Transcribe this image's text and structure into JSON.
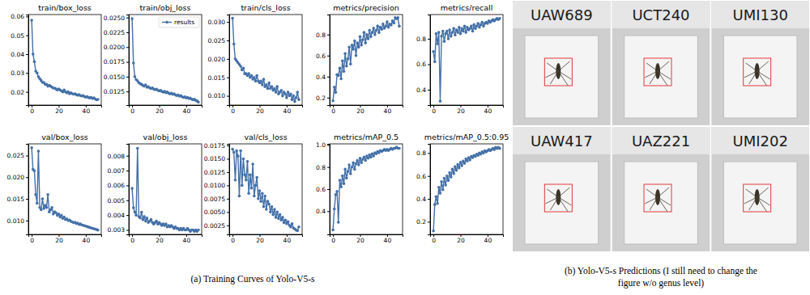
{
  "chart_data": [
    {
      "type": "line",
      "title": "train/box_loss",
      "color": "#4470a8",
      "marker": "o",
      "line_style": "solid",
      "grid": false,
      "x": [
        0,
        1,
        2,
        3,
        4,
        5,
        6,
        7,
        8,
        9,
        10,
        11,
        12,
        13,
        14,
        15,
        16,
        17,
        18,
        19,
        20,
        21,
        22,
        23,
        24,
        25,
        26,
        27,
        28,
        29,
        30,
        31,
        32,
        33,
        34,
        35,
        36,
        37,
        38,
        39,
        40,
        41,
        42,
        43,
        44,
        45,
        46,
        47,
        48,
        49
      ],
      "values": [
        0.058,
        0.04,
        0.036,
        0.031,
        0.03,
        0.028,
        0.027,
        0.026,
        0.025,
        0.025,
        0.024,
        0.024,
        0.023,
        0.0235,
        0.023,
        0.0225,
        0.022,
        0.022,
        0.0215,
        0.021,
        0.0215,
        0.021,
        0.0205,
        0.02,
        0.021,
        0.02,
        0.0195,
        0.02,
        0.019,
        0.0195,
        0.019,
        0.0188,
        0.019,
        0.0185,
        0.0182,
        0.0185,
        0.018,
        0.0178,
        0.018,
        0.0175,
        0.0172,
        0.0175,
        0.017,
        0.0168,
        0.017,
        0.0165,
        0.0168,
        0.0162,
        0.0158,
        0.016
      ],
      "xlim": [
        -2.45,
        51.45
      ],
      "xticks": [
        0,
        20,
        40
      ],
      "ylim": [
        0.013,
        0.061
      ],
      "yticks": [
        0.02,
        0.03,
        0.04,
        0.05,
        0.06
      ]
    },
    {
      "type": "line",
      "title": "train/obj_loss",
      "marker": "o",
      "line_style": "solid",
      "grid": false,
      "legend": "upper right",
      "x": [
        0,
        1,
        2,
        3,
        4,
        5,
        6,
        7,
        8,
        9,
        10,
        11,
        12,
        13,
        14,
        15,
        16,
        17,
        18,
        19,
        20,
        21,
        22,
        23,
        24,
        25,
        26,
        27,
        28,
        29,
        30,
        31,
        32,
        33,
        34,
        35,
        36,
        37,
        38,
        39,
        40,
        41,
        42,
        43,
        44,
        45,
        46,
        47,
        48,
        49
      ],
      "series": [
        {
          "name": "results",
          "color": "#4470a8",
          "values": [
            0.0248,
            0.0173,
            0.015,
            0.0145,
            0.0143,
            0.014,
            0.0138,
            0.0137,
            0.0135,
            0.0134,
            0.0136,
            0.0132,
            0.0133,
            0.0131,
            0.013,
            0.0131,
            0.0129,
            0.0128,
            0.0129,
            0.0127,
            0.0126,
            0.0127,
            0.0125,
            0.0124,
            0.0125,
            0.0123,
            0.0124,
            0.0122,
            0.0121,
            0.0122,
            0.012,
            0.0121,
            0.0119,
            0.0118,
            0.0119,
            0.0117,
            0.0118,
            0.0116,
            0.0115,
            0.0116,
            0.0114,
            0.0115,
            0.0113,
            0.0114,
            0.0112,
            0.0111,
            0.0112,
            0.011,
            0.0109,
            0.0107
          ]
        }
      ],
      "xlim": [
        -2.45,
        51.45
      ],
      "xticks": [
        0,
        20,
        40
      ],
      "ylim": [
        0.0102,
        0.0255
      ],
      "yticks": [
        0.0125,
        {
          "value": 0.015,
          "label": "0.0150"
        },
        0.0175,
        {
          "value": 0.02,
          "label": "0.0200"
        },
        0.0225,
        {
          "value": 0.025,
          "label": "0.0250"
        }
      ]
    },
    {
      "type": "line",
      "title": "train/cls_loss",
      "color": "#4470a8",
      "marker": "o",
      "line_style": "solid",
      "grid": false,
      "x": [
        0,
        1,
        2,
        3,
        4,
        5,
        6,
        7,
        8,
        9,
        10,
        11,
        12,
        13,
        14,
        15,
        16,
        17,
        18,
        19,
        20,
        21,
        22,
        23,
        24,
        25,
        26,
        27,
        28,
        29,
        30,
        31,
        32,
        33,
        34,
        35,
        36,
        37,
        38,
        39,
        40,
        41,
        42,
        43,
        44,
        45,
        46,
        47,
        48,
        49
      ],
      "values": [
        0.031,
        0.024,
        0.02,
        0.0195,
        0.019,
        0.0185,
        0.018,
        0.017,
        0.0175,
        0.016,
        0.016,
        0.0155,
        0.016,
        0.015,
        0.0155,
        0.0145,
        0.015,
        0.014,
        0.0155,
        0.014,
        0.0135,
        0.014,
        0.013,
        0.0145,
        0.0125,
        0.013,
        0.012,
        0.0135,
        0.012,
        0.0125,
        0.0115,
        0.012,
        0.011,
        0.0125,
        0.0105,
        0.011,
        0.0115,
        0.01,
        0.011,
        0.0105,
        0.0095,
        0.011,
        0.01,
        0.0105,
        0.009,
        0.01,
        0.0085,
        0.0095,
        0.011,
        0.009
      ],
      "xlim": [
        -2.45,
        51.45
      ],
      "xticks": [
        0,
        20,
        40
      ],
      "ylim": [
        0.0075,
        0.032
      ],
      "yticks": [
        {
          "value": 0.01,
          "label": "0.010"
        },
        0.015,
        {
          "value": 0.02,
          "label": "0.020"
        },
        0.025,
        {
          "value": 0.03,
          "label": "0.030"
        }
      ]
    },
    {
      "type": "line",
      "title": "metrics/precision",
      "color": "#4470a8",
      "marker": "o",
      "line_style": "solid",
      "grid": false,
      "x": [
        0,
        1,
        2,
        3,
        4,
        5,
        6,
        7,
        8,
        9,
        10,
        11,
        12,
        13,
        14,
        15,
        16,
        17,
        18,
        19,
        20,
        21,
        22,
        23,
        24,
        25,
        26,
        27,
        28,
        29,
        30,
        31,
        32,
        33,
        34,
        35,
        36,
        37,
        38,
        39,
        40,
        41,
        42,
        43,
        44,
        45,
        46,
        47,
        48,
        49
      ],
      "values": [
        0.17,
        0.3,
        0.25,
        0.42,
        0.41,
        0.48,
        0.38,
        0.55,
        0.45,
        0.62,
        0.5,
        0.57,
        0.68,
        0.52,
        0.7,
        0.66,
        0.74,
        0.6,
        0.72,
        0.68,
        0.78,
        0.7,
        0.75,
        0.82,
        0.72,
        0.8,
        0.76,
        0.84,
        0.78,
        0.82,
        0.86,
        0.8,
        0.84,
        0.88,
        0.82,
        0.87,
        0.85,
        0.9,
        0.86,
        0.88,
        0.92,
        0.87,
        0.9,
        0.89,
        0.93,
        0.91,
        0.96,
        0.95,
        0.96,
        0.88
      ],
      "xlim": [
        -2.45,
        51.45
      ],
      "xticks": [
        0,
        20,
        40
      ],
      "ylim": [
        0.13,
        0.99
      ],
      "yticks": [
        0.2,
        0.4,
        0.6,
        0.8
      ]
    },
    {
      "type": "line",
      "title": "metrics/recall",
      "color": "#4470a8",
      "marker": "o",
      "line_style": "solid",
      "grid": false,
      "x": [
        0,
        1,
        2,
        3,
        4,
        5,
        6,
        7,
        8,
        9,
        10,
        11,
        12,
        13,
        14,
        15,
        16,
        17,
        18,
        19,
        20,
        21,
        22,
        23,
        24,
        25,
        26,
        27,
        28,
        29,
        30,
        31,
        32,
        33,
        34,
        35,
        36,
        37,
        38,
        39,
        40,
        41,
        42,
        43,
        44,
        45,
        46,
        47,
        48,
        49
      ],
      "values": [
        0.7,
        0.62,
        0.84,
        0.76,
        0.85,
        0.31,
        0.82,
        0.86,
        0.78,
        0.84,
        0.86,
        0.8,
        0.87,
        0.82,
        0.85,
        0.88,
        0.83,
        0.87,
        0.85,
        0.89,
        0.84,
        0.88,
        0.86,
        0.9,
        0.85,
        0.89,
        0.87,
        0.88,
        0.9,
        0.86,
        0.91,
        0.88,
        0.9,
        0.92,
        0.89,
        0.91,
        0.93,
        0.9,
        0.92,
        0.93,
        0.92,
        0.94,
        0.93,
        0.94,
        0.95,
        0.94,
        0.95,
        0.96,
        0.95,
        0.96
      ],
      "xlim": [
        -2.45,
        51.45
      ],
      "xticks": [
        0,
        20,
        40
      ],
      "ylim": [
        0.28,
        0.99
      ],
      "yticks": [
        0.4,
        0.6,
        0.8
      ]
    },
    {
      "type": "line",
      "title": "val/box_loss",
      "color": "#4470a8",
      "marker": "o",
      "line_style": "solid",
      "grid": false,
      "x": [
        0,
        1,
        2,
        3,
        4,
        5,
        6,
        7,
        8,
        9,
        10,
        11,
        12,
        13,
        14,
        15,
        16,
        17,
        18,
        19,
        20,
        21,
        22,
        23,
        24,
        25,
        26,
        27,
        28,
        29,
        30,
        31,
        32,
        33,
        34,
        35,
        36,
        37,
        38,
        39,
        40,
        41,
        42,
        43,
        44,
        45,
        46,
        47,
        48,
        49
      ],
      "values": [
        0.0268,
        0.0218,
        0.0215,
        0.016,
        0.014,
        0.026,
        0.013,
        0.0125,
        0.015,
        0.0128,
        0.0135,
        0.013,
        0.016,
        0.012,
        0.0125,
        0.013,
        0.0115,
        0.012,
        0.0118,
        0.0112,
        0.0115,
        0.0108,
        0.0112,
        0.0105,
        0.0108,
        0.0102,
        0.0104,
        0.01,
        0.0101,
        0.0098,
        0.0097,
        0.0095,
        0.0096,
        0.0093,
        0.0094,
        0.0091,
        0.0092,
        0.009,
        0.0089,
        0.0088,
        0.0087,
        0.0086,
        0.0085,
        0.0084,
        0.0083,
        0.0082,
        0.0081,
        0.008,
        0.0079,
        0.0078
      ],
      "xlim": [
        -2.45,
        51.45
      ],
      "xticks": [
        0,
        20,
        40
      ],
      "ylim": [
        0.0068,
        0.0277
      ],
      "yticks": [
        {
          "value": 0.01,
          "label": "0.010"
        },
        0.015,
        {
          "value": 0.02,
          "label": "0.020"
        },
        0.025
      ]
    },
    {
      "type": "line",
      "title": "val/obj_loss",
      "color": "#4470a8",
      "marker": "o",
      "line_style": "solid",
      "grid": false,
      "x": [
        0,
        1,
        2,
        3,
        4,
        5,
        6,
        7,
        8,
        9,
        10,
        11,
        12,
        13,
        14,
        15,
        16,
        17,
        18,
        19,
        20,
        21,
        22,
        23,
        24,
        25,
        26,
        27,
        28,
        29,
        30,
        31,
        32,
        33,
        34,
        35,
        36,
        37,
        38,
        39,
        40,
        41,
        42,
        43,
        44,
        45,
        46,
        47,
        48,
        49
      ],
      "values": [
        0.0058,
        0.0045,
        0.0042,
        0.004,
        0.0085,
        0.0039,
        0.0038,
        0.0042,
        0.0037,
        0.0039,
        0.0036,
        0.0038,
        0.0035,
        0.0036,
        0.0037,
        0.0035,
        0.0034,
        0.0035,
        0.0036,
        0.0034,
        0.0035,
        0.0034,
        0.0033,
        0.0034,
        0.0033,
        0.0034,
        0.0032,
        0.0033,
        0.0032,
        0.0033,
        0.0032,
        0.0031,
        0.0032,
        0.0031,
        0.0031,
        0.003,
        0.0031,
        0.003,
        0.0031,
        0.003,
        0.003,
        0.0031,
        0.003,
        0.0029,
        0.003,
        0.003,
        0.0029,
        0.003,
        0.0029,
        0.003
      ],
      "xlim": [
        -2.45,
        51.45
      ],
      "xticks": [
        0,
        20,
        40
      ],
      "ylim": [
        0.0027,
        0.0088
      ],
      "yticks": [
        0.003,
        0.004,
        0.005,
        0.006,
        0.007,
        0.008
      ]
    },
    {
      "type": "line",
      "title": "val/cls_loss",
      "color": "#4470a8",
      "marker": "o",
      "line_style": "solid",
      "grid": false,
      "x": [
        0,
        1,
        2,
        3,
        4,
        5,
        6,
        7,
        8,
        9,
        10,
        11,
        12,
        13,
        14,
        15,
        16,
        17,
        18,
        19,
        20,
        21,
        22,
        23,
        24,
        25,
        26,
        27,
        28,
        29,
        30,
        31,
        32,
        33,
        34,
        35,
        36,
        37,
        38,
        39,
        40,
        41,
        42,
        43,
        44,
        45,
        46,
        47,
        48,
        49
      ],
      "values": [
        0.0168,
        0.0162,
        0.011,
        0.0165,
        0.0155,
        0.008,
        0.0165,
        0.01,
        0.015,
        0.012,
        0.011,
        0.0145,
        0.0085,
        0.012,
        0.0095,
        0.014,
        0.008,
        0.01,
        0.0115,
        0.0075,
        0.009,
        0.007,
        0.0085,
        0.006,
        0.008,
        0.0055,
        0.007,
        0.0065,
        0.005,
        0.006,
        0.0045,
        0.0055,
        0.004,
        0.005,
        0.0038,
        0.0045,
        0.0035,
        0.004,
        0.003,
        0.0035,
        0.0028,
        0.0032,
        0.0025,
        0.0022,
        0.0028,
        0.002,
        0.0018,
        0.0016,
        0.0015,
        0.0022
      ],
      "xlim": [
        -2.45,
        51.45
      ],
      "xticks": [
        0,
        20,
        40
      ],
      "ylim": [
        0.0008,
        0.0178
      ],
      "yticks": [
        0.0025,
        {
          "value": 0.005,
          "label": "0.0050"
        },
        0.0075,
        {
          "value": 0.01,
          "label": "0.0100"
        },
        0.0125,
        {
          "value": 0.015,
          "label": "0.0150"
        },
        0.0175
      ]
    },
    {
      "type": "line",
      "title": "metrics/mAP_0.5",
      "color": "#4470a8",
      "marker": "o",
      "line_style": "solid",
      "grid": false,
      "x": [
        0,
        1,
        2,
        3,
        4,
        5,
        6,
        7,
        8,
        9,
        10,
        11,
        12,
        13,
        14,
        15,
        16,
        17,
        18,
        19,
        20,
        21,
        22,
        23,
        24,
        25,
        26,
        27,
        28,
        29,
        30,
        31,
        32,
        33,
        34,
        35,
        36,
        37,
        38,
        39,
        40,
        41,
        42,
        43,
        44,
        45,
        46,
        47,
        48,
        49
      ],
      "values": [
        0.23,
        0.42,
        0.55,
        0.58,
        0.3,
        0.68,
        0.62,
        0.72,
        0.65,
        0.78,
        0.7,
        0.76,
        0.82,
        0.74,
        0.8,
        0.84,
        0.78,
        0.83,
        0.86,
        0.82,
        0.88,
        0.84,
        0.87,
        0.89,
        0.86,
        0.9,
        0.88,
        0.91,
        0.89,
        0.92,
        0.9,
        0.93,
        0.92,
        0.94,
        0.93,
        0.95,
        0.94,
        0.95,
        0.96,
        0.95,
        0.96,
        0.95,
        0.96,
        0.97,
        0.96,
        0.97,
        0.97,
        0.98,
        0.97,
        0.97
      ],
      "xlim": [
        -2.45,
        51.45
      ],
      "xticks": [
        0,
        20,
        40
      ],
      "ylim": [
        0.19,
        1.01
      ],
      "yticks": [
        0.4,
        0.6,
        0.8,
        {
          "value": 1,
          "label": "1.0"
        }
      ]
    },
    {
      "type": "line",
      "title": "metrics/mAP_0.5:0.95",
      "color": "#4470a8",
      "marker": "o",
      "line_style": "solid",
      "grid": false,
      "x": [
        0,
        1,
        2,
        3,
        4,
        5,
        6,
        7,
        8,
        9,
        10,
        11,
        12,
        13,
        14,
        15,
        16,
        17,
        18,
        19,
        20,
        21,
        22,
        23,
        24,
        25,
        26,
        27,
        28,
        29,
        30,
        31,
        32,
        33,
        34,
        35,
        36,
        37,
        38,
        39,
        40,
        41,
        42,
        43,
        44,
        45,
        46,
        47,
        48,
        49
      ],
      "values": [
        0.12,
        0.35,
        0.42,
        0.36,
        0.5,
        0.45,
        0.55,
        0.48,
        0.58,
        0.52,
        0.6,
        0.56,
        0.63,
        0.59,
        0.66,
        0.62,
        0.68,
        0.65,
        0.7,
        0.67,
        0.72,
        0.69,
        0.73,
        0.71,
        0.75,
        0.73,
        0.76,
        0.74,
        0.77,
        0.76,
        0.78,
        0.77,
        0.79,
        0.78,
        0.8,
        0.79,
        0.81,
        0.8,
        0.82,
        0.81,
        0.82,
        0.83,
        0.82,
        0.83,
        0.84,
        0.83,
        0.85,
        0.84,
        0.85,
        0.84
      ],
      "xlim": [
        -2.45,
        51.45
      ],
      "xticks": [
        0,
        20,
        40
      ],
      "ylim": [
        0.09,
        0.88
      ],
      "yticks": [
        0.2,
        0.4,
        0.6,
        0.8
      ]
    }
  ],
  "figure": {
    "caption_a": "(a) Training Curves of Yolo-V5-s",
    "caption_b": [
      "(b) Yolo-V5-s Predictions (I still need to change the",
      "figure w/o genus level)"
    ],
    "photos": [
      {
        "label": "UAW689"
      },
      {
        "label": "UCT240"
      },
      {
        "label": "UMI130"
      },
      {
        "label": "UAW417"
      },
      {
        "label": "UAZ221"
      },
      {
        "label": "UMI202"
      }
    ]
  }
}
